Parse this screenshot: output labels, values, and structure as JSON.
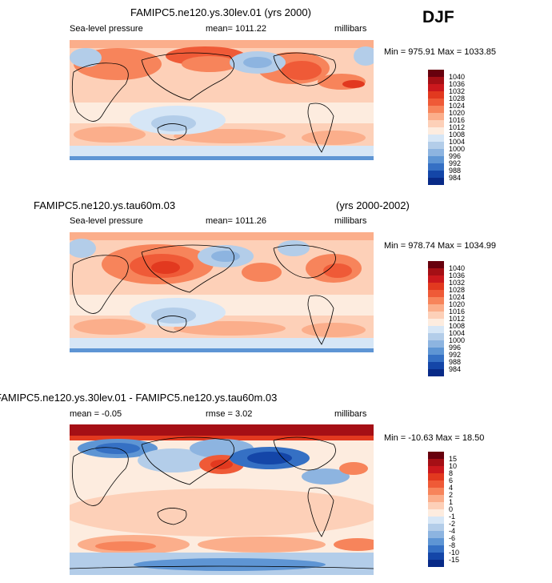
{
  "season": "DJF",
  "panels": [
    {
      "title": "FAMIPC5.ne120.ys.30lev.01 (yrs 2000)",
      "title_years": "",
      "variable": "Sea-level pressure",
      "stat": "mean=  1011.22",
      "units": "millibars",
      "minmax": "Min = 975.91  Max = 1033.85",
      "kind": "slp",
      "colorbar": {
        "labels": [
          "1040",
          "1036",
          "1032",
          "1028",
          "1024",
          "1020",
          "1016",
          "1012",
          "1008",
          "1004",
          "1000",
          "996",
          "992",
          "988",
          "984"
        ],
        "colors": [
          "#67000d",
          "#a50f15",
          "#cb181d",
          "#e2391f",
          "#ef5a37",
          "#f7845b",
          "#fbae8b",
          "#fdd0b8",
          "#fdecdf",
          "#d6e6f6",
          "#b3cde9",
          "#8db4e0",
          "#5e95d4",
          "#3570c4",
          "#1446a8",
          "#082a87"
        ]
      }
    },
    {
      "title": "FAMIPC5.ne120.ys.tau60m.03",
      "title_years": "(yrs 2000-2002)",
      "variable": "Sea-level pressure",
      "stat": "mean=  1011.26",
      "units": "millibars",
      "minmax": "Min = 978.74  Max = 1034.99",
      "kind": "slp",
      "colorbar": {
        "labels": [
          "1040",
          "1036",
          "1032",
          "1028",
          "1024",
          "1020",
          "1016",
          "1012",
          "1008",
          "1004",
          "1000",
          "996",
          "992",
          "988",
          "984"
        ],
        "colors": [
          "#67000d",
          "#a50f15",
          "#cb181d",
          "#e2391f",
          "#ef5a37",
          "#f7845b",
          "#fbae8b",
          "#fdd0b8",
          "#fdecdf",
          "#d6e6f6",
          "#b3cde9",
          "#8db4e0",
          "#5e95d4",
          "#3570c4",
          "#1446a8",
          "#082a87"
        ]
      }
    },
    {
      "title": "FAMIPC5.ne120.ys.30lev.01 - FAMIPC5.ne120.ys.tau60m.03",
      "title_years": "",
      "variable": "mean =    -0.05",
      "stat": "rmse =     3.02",
      "units": "millibars",
      "minmax": "Min = -10.63  Max =  18.50",
      "kind": "diff",
      "colorbar": {
        "labels": [
          "15",
          "10",
          "8",
          "6",
          "4",
          "2",
          "1",
          "0",
          "-1",
          "-2",
          "-4",
          "-6",
          "-8",
          "-10",
          "-15"
        ],
        "colors": [
          "#67000d",
          "#a50f15",
          "#cb181d",
          "#e2391f",
          "#ef5a37",
          "#f7845b",
          "#fbae8b",
          "#fdd0b8",
          "#fdecdf",
          "#d6e6f6",
          "#b3cde9",
          "#8db4e0",
          "#5e95d4",
          "#3570c4",
          "#1446a8",
          "#082a87"
        ]
      }
    }
  ]
}
